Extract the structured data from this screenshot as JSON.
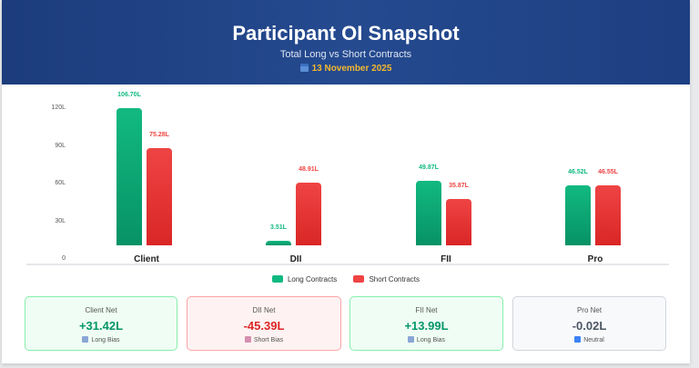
{
  "header": {
    "title": "Participant OI Snapshot",
    "subtitle": "Total Long vs Short Contracts",
    "date": "13 November 2025",
    "date_icon": "calendar-icon"
  },
  "chart_data": {
    "type": "bar",
    "categories": [
      "Client",
      "DII",
      "FII",
      "Pro"
    ],
    "series": [
      {
        "name": "Long Contracts",
        "values": [
          106.7,
          3.51,
          49.87,
          46.52
        ],
        "labels": [
          "106.70L",
          "3.51L",
          "49.87L",
          "46.52L"
        ],
        "color": "#10b981"
      },
      {
        "name": "Short Contracts",
        "values": [
          75.28,
          48.91,
          35.87,
          46.55
        ],
        "labels": [
          "75.28L",
          "48.91L",
          "35.87L",
          "46.55L"
        ],
        "color": "#ef4444"
      }
    ],
    "y_ticks": [
      "0",
      "30L",
      "60L",
      "90L",
      "120L"
    ],
    "legend": "bottom",
    "grid": false
  },
  "cards": [
    {
      "title": "Client Net",
      "value": "+31.42L",
      "bias": "Long Bias",
      "icon": "chart-up-icon",
      "tone": "green"
    },
    {
      "title": "DII Net",
      "value": "-45.39L",
      "bias": "Short Bias",
      "icon": "chart-down-icon",
      "tone": "red"
    },
    {
      "title": "FII Net",
      "value": "+13.99L",
      "bias": "Long Bias",
      "icon": "chart-up-icon",
      "tone": "green"
    },
    {
      "title": "Pro Net",
      "value": "-0.02L",
      "bias": "Neutral",
      "icon": "neutral-icon",
      "tone": "gray"
    }
  ],
  "colors": {
    "long": "#10b981",
    "short": "#ef4444",
    "header": "#21448a",
    "date": "#f5b82e"
  }
}
